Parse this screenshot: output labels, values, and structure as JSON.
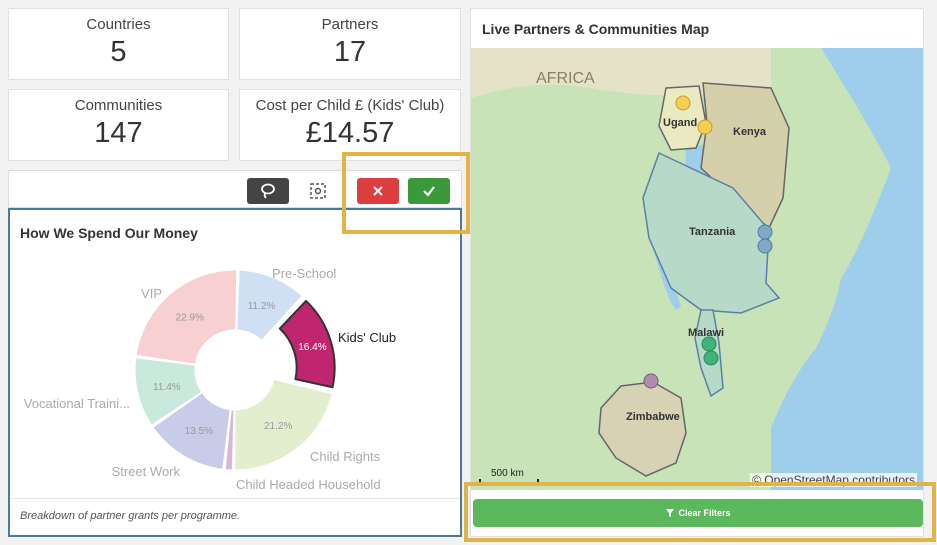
{
  "kpis": [
    {
      "label": "Countries",
      "value": "5"
    },
    {
      "label": "Partners",
      "value": "17"
    },
    {
      "label": "Communities",
      "value": "147"
    },
    {
      "label": "Cost per Child £ (Kids' Club)",
      "value": "£14.57"
    }
  ],
  "toolbar": {
    "lasso_icon": "lasso-icon",
    "select_icon": "selection-icon",
    "cancel_icon": "x-icon",
    "confirm_icon": "check-icon"
  },
  "colors": {
    "highlight": "#e2b448",
    "cancel": "#dc3e3e",
    "confirm": "#3a9a3a",
    "clear_filters": "#5cb85c",
    "panel_border": "#4c7a9c"
  },
  "pie_panel": {
    "title": "How We Spend Our Money",
    "footnote": "Breakdown of partner grants per programme."
  },
  "chart_data": {
    "type": "pie",
    "title": "How We Spend Our Money",
    "donut": true,
    "selected": "Kids' Club",
    "slices": [
      {
        "label": "Pre-School",
        "value": 11.2,
        "value_label": "11.2%",
        "color": "#cfe0f5"
      },
      {
        "label": "Kids' Club",
        "value": 16.4,
        "value_label": "16.4%",
        "color": "#c0266d"
      },
      {
        "label": "Child Rights",
        "value": 21.2,
        "value_label": "21.2%",
        "color": "#e2eecd"
      },
      {
        "label": "Child Headed Household",
        "value": 1.5,
        "value_label": "",
        "color": "#d7b6dc"
      },
      {
        "label": "Street Work",
        "value": 13.5,
        "value_label": "13.5%",
        "color": "#c8cce8"
      },
      {
        "label": "Vocational Traini...",
        "value": 11.4,
        "value_label": "11.4%",
        "color": "#c9e9dc"
      },
      {
        "label": "VIP",
        "value": 22.9,
        "value_label": "22.9%",
        "color": "#f8d0d2"
      }
    ]
  },
  "map_panel": {
    "title": "Live Partners & Communities Map",
    "labels": {
      "africa": "AFRICA",
      "uganda": "Ugand",
      "kenya": "Kenya",
      "tanzania": "Tanzania",
      "malawi": "Malawi",
      "zimbabwe": "Zimbabwe"
    },
    "scale": "500 km",
    "attribution_prefix": "©",
    "attribution": "OpenStreetMap contributors"
  },
  "clear_filters": {
    "label": "Clear Filters",
    "icon": "filter-clear-icon"
  }
}
